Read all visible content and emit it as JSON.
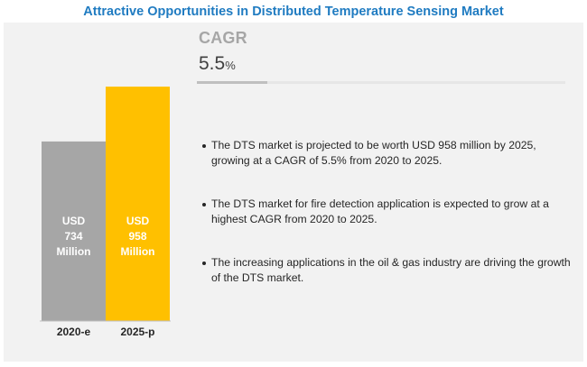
{
  "title": "Attractive Opportunities in Distributed Temperature Sensing Market",
  "cagr": {
    "label": "CAGR",
    "value": "5.5",
    "unit": "%"
  },
  "colors": {
    "bar_2020": "#a6a6a6",
    "bar_2025": "#ffc000",
    "title": "#1f7bc1",
    "panel": "#f2f2f2"
  },
  "chart_data": {
    "type": "bar",
    "title": "",
    "categories": [
      "2020-e",
      "2025-p"
    ],
    "values": [
      734,
      958
    ],
    "unit": "USD Million",
    "bar_labels": [
      [
        "USD",
        "734",
        "Million"
      ],
      [
        "USD",
        "958",
        "Million"
      ]
    ],
    "ylim": [
      0,
      1000
    ],
    "xlabel": "",
    "ylabel": ""
  },
  "bullets": [
    "The DTS market is projected to be worth USD 958 million by 2025, growing at a CAGR of 5.5% from 2020 to 2025.",
    "The DTS market for fire detection application is expected to grow at a highest CAGR from 2020 to 2025.",
    "The increasing applications in the oil & gas industry are driving the growth of the DTS market."
  ]
}
